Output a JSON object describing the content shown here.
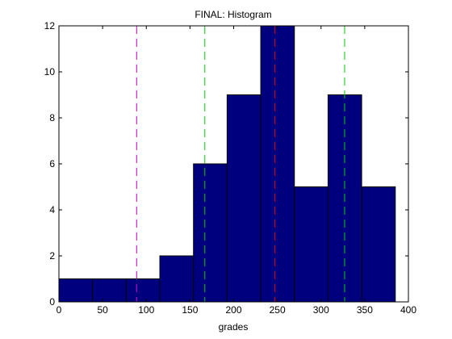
{
  "chart_data": {
    "type": "bar",
    "title": "FINAL: Histogram",
    "xlabel": "grades",
    "ylabel": "",
    "xlim": [
      0,
      400
    ],
    "ylim": [
      0,
      12
    ],
    "xticks": [
      0,
      50,
      100,
      150,
      200,
      250,
      300,
      350,
      400
    ],
    "yticks": [
      0,
      2,
      4,
      6,
      8,
      10,
      12
    ],
    "grid": false,
    "bins": [
      {
        "start": 0,
        "end": 38.5,
        "count": 1
      },
      {
        "start": 38.5,
        "end": 77,
        "count": 1
      },
      {
        "start": 77,
        "end": 115.5,
        "count": 1
      },
      {
        "start": 115.5,
        "end": 154,
        "count": 2
      },
      {
        "start": 154,
        "end": 192.5,
        "count": 6
      },
      {
        "start": 192.5,
        "end": 231,
        "count": 9
      },
      {
        "start": 231,
        "end": 269.5,
        "count": 12
      },
      {
        "start": 269.5,
        "end": 308,
        "count": 5
      },
      {
        "start": 308,
        "end": 346.5,
        "count": 9
      },
      {
        "start": 346.5,
        "end": 385,
        "count": 5
      }
    ],
    "reference_lines": [
      {
        "x": 89,
        "color": "#d400d4"
      },
      {
        "x": 167,
        "color": "#00cc00"
      },
      {
        "x": 247,
        "color": "#e00000"
      },
      {
        "x": 327,
        "color": "#00cc00"
      }
    ],
    "bar_color": "#00007f"
  }
}
